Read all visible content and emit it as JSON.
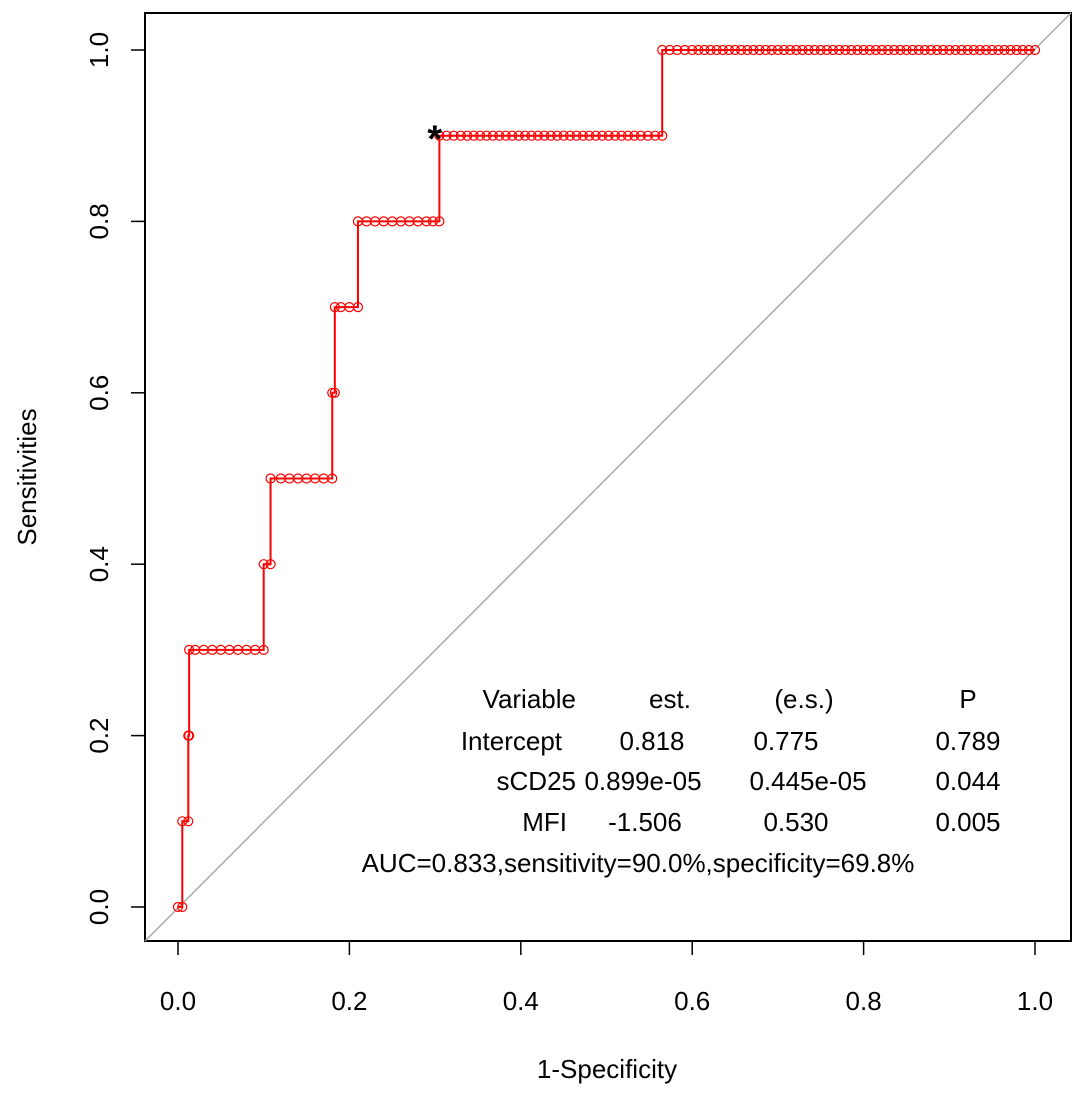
{
  "chart_data": {
    "type": "line",
    "title": "",
    "xlabel": "1-Specificity",
    "ylabel": "Sensitivities",
    "xlim": [
      0.0,
      1.0
    ],
    "ylim": [
      0.0,
      1.0
    ],
    "x_ticks": [
      "0.0",
      "0.2",
      "0.4",
      "0.6",
      "0.8",
      "1.0"
    ],
    "y_ticks": [
      "0.0",
      "0.2",
      "0.4",
      "0.6",
      "0.8",
      "1.0"
    ],
    "series": [
      {
        "name": "ROC curve",
        "color": "#ff0000",
        "x": [
          0.0,
          0.005,
          0.005,
          0.012,
          0.012,
          0.013,
          0.013,
          0.02,
          0.04,
          0.06,
          0.08,
          0.1,
          0.1,
          0.108,
          0.108,
          0.12,
          0.14,
          0.16,
          0.18,
          0.18,
          0.183,
          0.183,
          0.19,
          0.21,
          0.21,
          0.23,
          0.25,
          0.27,
          0.29,
          0.305,
          0.305,
          0.33,
          0.36,
          0.39,
          0.42,
          0.45,
          0.48,
          0.51,
          0.54,
          0.565,
          0.565,
          0.6,
          0.65,
          0.7,
          0.75,
          0.8,
          0.85,
          0.9,
          0.95,
          1.0
        ],
        "y": [
          0.0,
          0.0,
          0.1,
          0.1,
          0.2,
          0.2,
          0.3,
          0.3,
          0.3,
          0.3,
          0.3,
          0.3,
          0.4,
          0.4,
          0.5,
          0.5,
          0.5,
          0.5,
          0.5,
          0.6,
          0.6,
          0.7,
          0.7,
          0.7,
          0.8,
          0.8,
          0.8,
          0.8,
          0.8,
          0.8,
          0.9,
          0.9,
          0.9,
          0.9,
          0.9,
          0.9,
          0.9,
          0.9,
          0.9,
          0.9,
          1.0,
          1.0,
          1.0,
          1.0,
          1.0,
          1.0,
          1.0,
          1.0,
          1.0,
          1.0
        ]
      },
      {
        "name": "Reference line",
        "color": "#aaaaaa",
        "x": [
          0.0,
          1.0
        ],
        "y": [
          0.0,
          1.0
        ]
      }
    ],
    "optimal_point": {
      "x": 0.302,
      "y": 0.9,
      "marker": "*"
    },
    "annotations": [
      [
        "Variable",
        "est.",
        "(e.s.)",
        "P"
      ],
      [
        "Intercept",
        "0.818",
        "0.775",
        "0.789"
      ],
      [
        "sCD25",
        "0.899e-05",
        "0.445e-05",
        "0.044"
      ],
      [
        "MFI",
        "-1.506",
        "0.530",
        "0.005"
      ],
      [
        "AUC=0.833,sensitivity=90.0%,specificity=69.8%"
      ]
    ]
  }
}
